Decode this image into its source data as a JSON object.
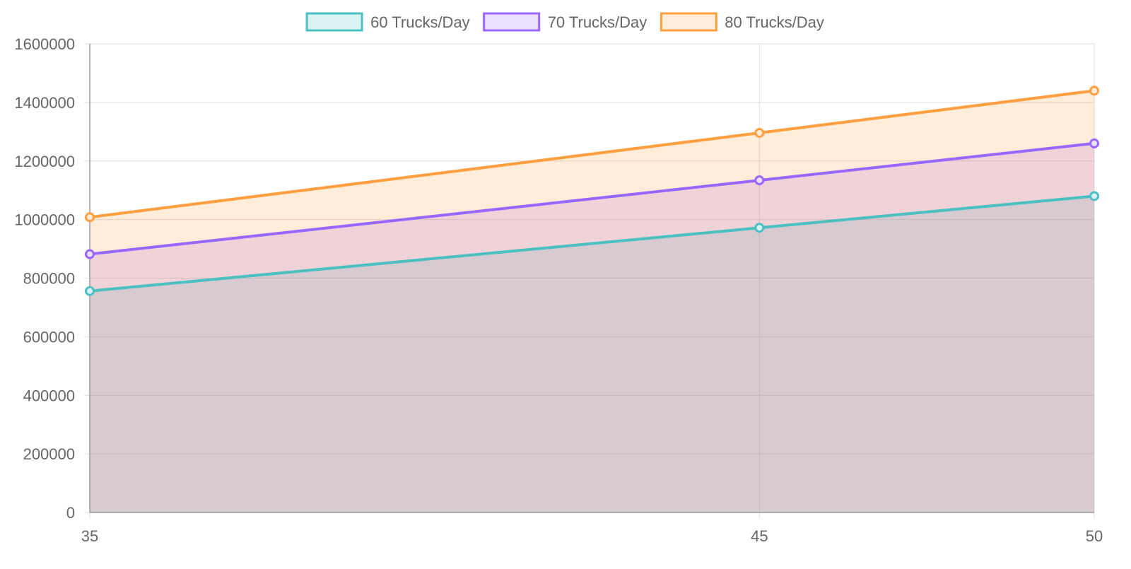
{
  "chart_data": {
    "type": "area",
    "title": "",
    "xlabel": "",
    "ylabel": "",
    "x": [
      35,
      45,
      50
    ],
    "x_tick_labels": [
      "35",
      "45",
      "50"
    ],
    "ylim": [
      0,
      1600000
    ],
    "y_ticks": [
      0,
      200000,
      400000,
      600000,
      800000,
      1000000,
      1200000,
      1400000,
      1600000
    ],
    "y_tick_labels": [
      "0",
      "200000",
      "400000",
      "600000",
      "800000",
      "1000000",
      "1200000",
      "1400000",
      "1600000"
    ],
    "grid": true,
    "legend_position": "top",
    "series": [
      {
        "name": "60 Trucks/Day",
        "values": [
          756000,
          972000,
          1080000
        ],
        "color": "#4bc0c0",
        "fill": "#d9f2f2"
      },
      {
        "name": "70 Trucks/Day",
        "values": [
          882000,
          1134000,
          1260000
        ],
        "color": "#9966ff",
        "fill": "#ebe0ff"
      },
      {
        "name": "80 Trucks/Day",
        "values": [
          1008000,
          1296000,
          1440000
        ],
        "color": "#ff9f40",
        "fill": "#ffecd9"
      }
    ],
    "area_fill_colors": [
      "#c9ccd9",
      "#eacfe2",
      "#ffead8"
    ]
  }
}
